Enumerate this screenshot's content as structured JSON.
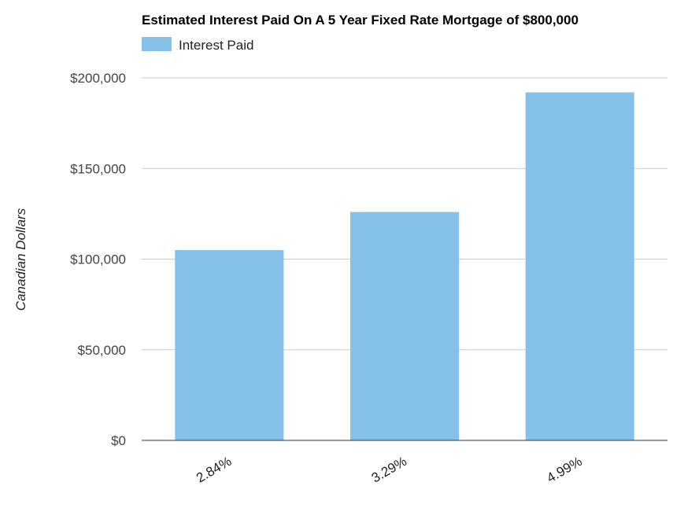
{
  "chart_data": {
    "type": "bar",
    "title": "Estimated Interest Paid On A 5 Year Fixed Rate Mortgage of $800,000",
    "xlabel": "",
    "ylabel": "Canadian Dollars",
    "categories": [
      "2.84%",
      "3.29%",
      "4.99%"
    ],
    "series": [
      {
        "name": "Interest Paid",
        "values": [
          105000,
          126000,
          192000
        ],
        "color": "#85c1e9"
      }
    ],
    "ylim": [
      0,
      200000
    ],
    "yticks": [
      0,
      50000,
      100000,
      150000,
      200000
    ],
    "ytick_labels": [
      "$0",
      "$50,000",
      "$100,000",
      "$150,000",
      "$200,000"
    ],
    "grid": true,
    "legend_position": "top-left"
  }
}
